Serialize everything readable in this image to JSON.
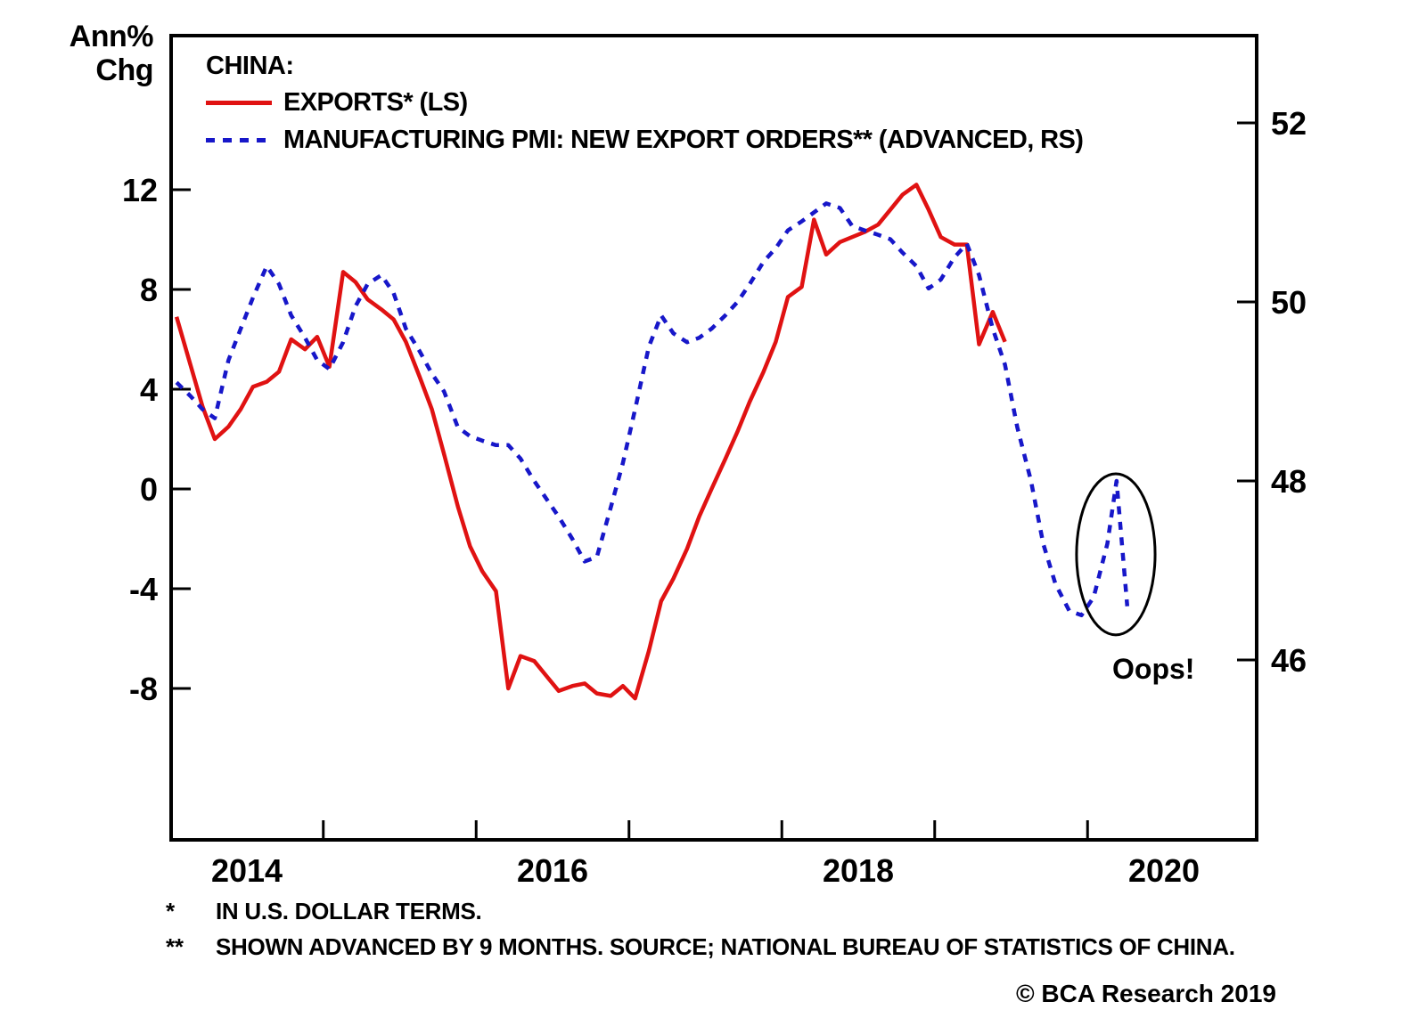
{
  "axis_unit": {
    "line1": "Ann%",
    "line2": "Chg"
  },
  "legend": {
    "title": "CHINA:",
    "items": [
      {
        "label": "EXPORTS* (LS)",
        "color": "#e01212",
        "style": "solid"
      },
      {
        "label": "MANUFACTURING PMI: NEW EXPORT ORDERS** (ADVANCED, RS)",
        "color": "#1717c9",
        "style": "dashed"
      }
    ]
  },
  "annotation": {
    "oops": "Oops!"
  },
  "footnotes": [
    {
      "marker": "*",
      "text": "IN U.S. DOLLAR TERMS."
    },
    {
      "marker": "**",
      "text": "SHOWN ADVANCED BY 9 MONTHS. SOURCE; NATIONAL BUREAU OF STATISTICS OF CHINA."
    }
  ],
  "copyright": "© BCA Research 2019",
  "chart_data": {
    "type": "line",
    "title": "CHINA: EXPORTS vs MANUFACTURING PMI NEW EXPORT ORDERS",
    "left_axis": {
      "label": "Ann% Chg",
      "ticks": [
        12,
        8,
        4,
        0,
        -4,
        -8
      ]
    },
    "right_axis": {
      "ticks": [
        52,
        50,
        48,
        46
      ]
    },
    "x_axis": {
      "year_labels": [
        2014,
        2016,
        2018,
        2020
      ],
      "minor_ticks": [
        2014.5,
        2015.5,
        2016.5,
        2017.5,
        2018.5,
        2019.5
      ],
      "range": [
        2013.5,
        2020.6
      ]
    },
    "series": [
      {
        "name": "EXPORTS* (LS)",
        "axis": "left",
        "color": "#e01212",
        "style": "solid",
        "points": [
          [
            2013.54,
            6.9
          ],
          [
            2013.63,
            5.0
          ],
          [
            2013.71,
            3.3
          ],
          [
            2013.79,
            2.0
          ],
          [
            2013.88,
            2.5
          ],
          [
            2013.96,
            3.2
          ],
          [
            2014.04,
            4.1
          ],
          [
            2014.13,
            4.3
          ],
          [
            2014.21,
            4.7
          ],
          [
            2014.29,
            6.0
          ],
          [
            2014.38,
            5.6
          ],
          [
            2014.46,
            6.1
          ],
          [
            2014.54,
            4.9
          ],
          [
            2014.63,
            8.7
          ],
          [
            2014.71,
            8.3
          ],
          [
            2014.79,
            7.6
          ],
          [
            2014.88,
            7.2
          ],
          [
            2014.96,
            6.8
          ],
          [
            2015.04,
            5.9
          ],
          [
            2015.13,
            4.5
          ],
          [
            2015.21,
            3.2
          ],
          [
            2015.29,
            1.4
          ],
          [
            2015.38,
            -0.7
          ],
          [
            2015.46,
            -2.3
          ],
          [
            2015.54,
            -3.3
          ],
          [
            2015.63,
            -4.1
          ],
          [
            2015.71,
            -8.0
          ],
          [
            2015.79,
            -6.7
          ],
          [
            2015.88,
            -6.9
          ],
          [
            2015.96,
            -7.5
          ],
          [
            2016.04,
            -8.1
          ],
          [
            2016.13,
            -7.9
          ],
          [
            2016.21,
            -7.8
          ],
          [
            2016.29,
            -8.2
          ],
          [
            2016.38,
            -8.3
          ],
          [
            2016.46,
            -7.9
          ],
          [
            2016.54,
            -8.4
          ],
          [
            2016.63,
            -6.5
          ],
          [
            2016.71,
            -4.5
          ],
          [
            2016.79,
            -3.6
          ],
          [
            2016.88,
            -2.4
          ],
          [
            2016.96,
            -1.1
          ],
          [
            2017.04,
            0.0
          ],
          [
            2017.13,
            1.2
          ],
          [
            2017.21,
            2.3
          ],
          [
            2017.29,
            3.5
          ],
          [
            2017.38,
            4.7
          ],
          [
            2017.46,
            5.9
          ],
          [
            2017.54,
            7.7
          ],
          [
            2017.63,
            8.1
          ],
          [
            2017.71,
            10.8
          ],
          [
            2017.79,
            9.4
          ],
          [
            2017.88,
            9.9
          ],
          [
            2017.96,
            10.1
          ],
          [
            2018.04,
            10.3
          ],
          [
            2018.13,
            10.6
          ],
          [
            2018.21,
            11.2
          ],
          [
            2018.29,
            11.8
          ],
          [
            2018.38,
            12.2
          ],
          [
            2018.46,
            11.2
          ],
          [
            2018.54,
            10.1
          ],
          [
            2018.63,
            9.8
          ],
          [
            2018.71,
            9.8
          ],
          [
            2018.79,
            5.8
          ],
          [
            2018.88,
            7.1
          ],
          [
            2018.96,
            5.9
          ]
        ]
      },
      {
        "name": "MANUFACTURING PMI: NEW EXPORT ORDERS** (ADVANCED, RS)",
        "axis": "right",
        "color": "#1717c9",
        "style": "dashed",
        "points": [
          [
            2013.54,
            49.1
          ],
          [
            2013.63,
            48.95
          ],
          [
            2013.71,
            48.8
          ],
          [
            2013.79,
            48.7
          ],
          [
            2013.88,
            49.35
          ],
          [
            2013.96,
            49.7
          ],
          [
            2014.04,
            50.05
          ],
          [
            2014.13,
            50.4
          ],
          [
            2014.21,
            50.2
          ],
          [
            2014.29,
            49.85
          ],
          [
            2014.38,
            49.6
          ],
          [
            2014.46,
            49.35
          ],
          [
            2014.54,
            49.25
          ],
          [
            2014.63,
            49.55
          ],
          [
            2014.71,
            49.95
          ],
          [
            2014.79,
            50.2
          ],
          [
            2014.88,
            50.3
          ],
          [
            2014.96,
            50.1
          ],
          [
            2015.04,
            49.7
          ],
          [
            2015.13,
            49.45
          ],
          [
            2015.21,
            49.2
          ],
          [
            2015.29,
            49.0
          ],
          [
            2015.38,
            48.6
          ],
          [
            2015.46,
            48.5
          ],
          [
            2015.54,
            48.45
          ],
          [
            2015.63,
            48.4
          ],
          [
            2015.71,
            48.4
          ],
          [
            2015.79,
            48.25
          ],
          [
            2015.88,
            48.0
          ],
          [
            2015.96,
            47.8
          ],
          [
            2016.04,
            47.6
          ],
          [
            2016.13,
            47.35
          ],
          [
            2016.21,
            47.1
          ],
          [
            2016.29,
            47.15
          ],
          [
            2016.38,
            47.7
          ],
          [
            2016.46,
            48.2
          ],
          [
            2016.54,
            48.8
          ],
          [
            2016.63,
            49.5
          ],
          [
            2016.71,
            49.85
          ],
          [
            2016.79,
            49.65
          ],
          [
            2016.88,
            49.55
          ],
          [
            2016.96,
            49.6
          ],
          [
            2017.04,
            49.7
          ],
          [
            2017.13,
            49.85
          ],
          [
            2017.21,
            50.0
          ],
          [
            2017.29,
            50.2
          ],
          [
            2017.38,
            50.45
          ],
          [
            2017.46,
            50.6
          ],
          [
            2017.54,
            50.8
          ],
          [
            2017.63,
            50.9
          ],
          [
            2017.71,
            51.0
          ],
          [
            2017.79,
            51.1
          ],
          [
            2017.88,
            51.05
          ],
          [
            2017.96,
            50.85
          ],
          [
            2018.04,
            50.8
          ],
          [
            2018.13,
            50.75
          ],
          [
            2018.21,
            50.7
          ],
          [
            2018.29,
            50.55
          ],
          [
            2018.38,
            50.4
          ],
          [
            2018.46,
            50.15
          ],
          [
            2018.54,
            50.25
          ],
          [
            2018.63,
            50.5
          ],
          [
            2018.71,
            50.65
          ],
          [
            2018.79,
            50.3
          ],
          [
            2018.88,
            49.7
          ],
          [
            2018.96,
            49.3
          ],
          [
            2019.04,
            48.6
          ],
          [
            2019.13,
            48.0
          ],
          [
            2019.21,
            47.3
          ],
          [
            2019.29,
            46.85
          ],
          [
            2019.38,
            46.55
          ],
          [
            2019.46,
            46.5
          ],
          [
            2019.54,
            46.7
          ],
          [
            2019.63,
            47.3
          ],
          [
            2019.69,
            48.0
          ],
          [
            2019.76,
            46.6
          ]
        ]
      }
    ],
    "annotation_ellipse": {
      "t": 2019.685,
      "v_right": 47.18,
      "rt_years": 0.257,
      "rv_right": 0.9
    }
  }
}
